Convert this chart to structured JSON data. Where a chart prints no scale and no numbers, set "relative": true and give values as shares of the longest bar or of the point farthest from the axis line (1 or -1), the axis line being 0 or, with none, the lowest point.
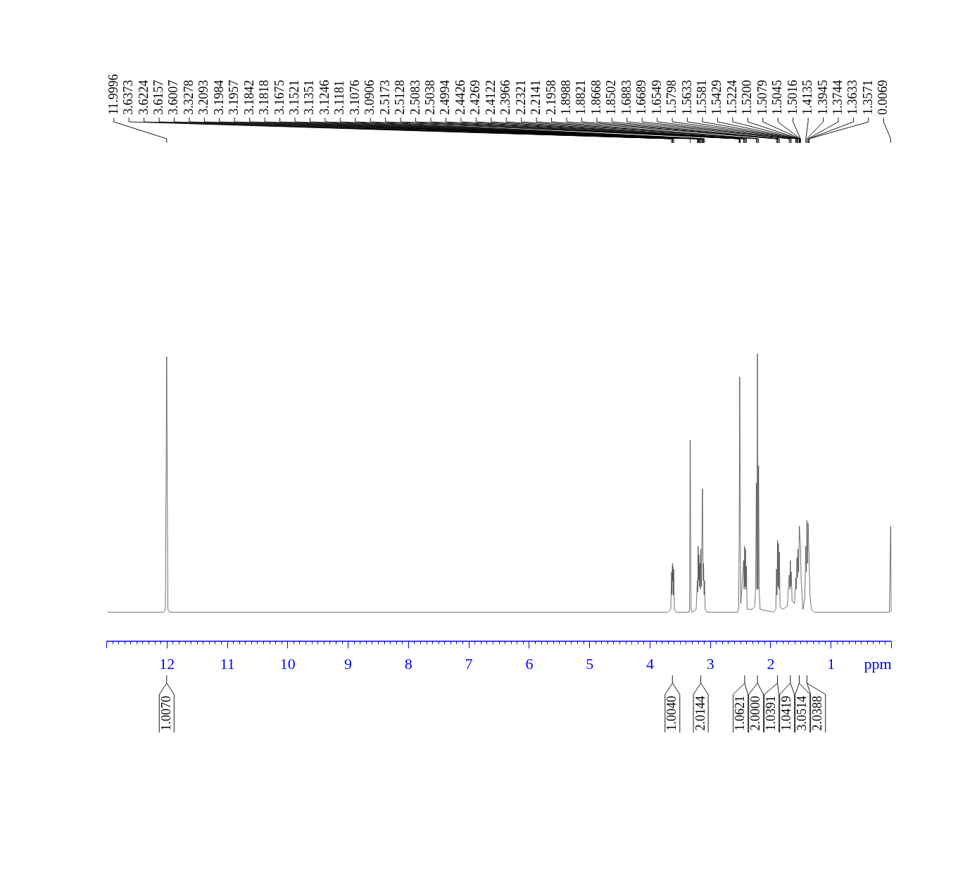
{
  "chart_data": {
    "type": "line",
    "relative": true,
    "color": "#333333",
    "xlabel": "ppm",
    "xlim": [
      13,
      0
    ],
    "xticks": [
      {
        "value": 13,
        "label": null
      },
      {
        "value": 12.9,
        "label": null
      },
      {
        "value": 12.8,
        "label": null
      },
      {
        "value": 12.7,
        "label": null
      },
      {
        "value": 12.6,
        "label": null
      },
      {
        "value": 12.5,
        "label": null
      },
      {
        "value": 12.4,
        "label": null
      },
      {
        "value": 12.3,
        "label": null
      },
      {
        "value": 12.2,
        "label": null
      },
      {
        "value": 12.1,
        "label": null
      },
      12,
      {
        "value": 11.9,
        "label": null
      },
      {
        "value": 11.8,
        "label": null
      },
      {
        "value": 11.7,
        "label": null
      },
      {
        "value": 11.6,
        "label": null
      },
      {
        "value": 11.5,
        "label": null
      },
      {
        "value": 11.4,
        "label": null
      },
      {
        "value": 11.3,
        "label": null
      },
      {
        "value": 11.2,
        "label": null
      },
      {
        "value": 11.1,
        "label": null
      },
      11,
      {
        "value": 10.9,
        "label": null
      },
      {
        "value": 10.8,
        "label": null
      },
      {
        "value": 10.7,
        "label": null
      },
      {
        "value": 10.6,
        "label": null
      },
      {
        "value": 10.5,
        "label": null
      },
      {
        "value": 10.4,
        "label": null
      },
      {
        "value": 10.3,
        "label": null
      },
      {
        "value": 10.2,
        "label": null
      },
      {
        "value": 10.1,
        "label": null
      },
      10,
      {
        "value": 9.9,
        "label": null
      },
      {
        "value": 9.8,
        "label": null
      },
      {
        "value": 9.7,
        "label": null
      },
      {
        "value": 9.6,
        "label": null
      },
      {
        "value": 9.5,
        "label": null
      },
      {
        "value": 9.4,
        "label": null
      },
      {
        "value": 9.3,
        "label": null
      },
      {
        "value": 9.2,
        "label": null
      },
      {
        "value": 9.1,
        "label": null
      },
      9,
      {
        "value": 8.9,
        "label": null
      },
      {
        "value": 8.8,
        "label": null
      },
      {
        "value": 8.7,
        "label": null
      },
      {
        "value": 8.6,
        "label": null
      },
      {
        "value": 8.5,
        "label": null
      },
      {
        "value": 8.4,
        "label": null
      },
      {
        "value": 8.3,
        "label": null
      },
      {
        "value": 8.2,
        "label": null
      },
      {
        "value": 8.1,
        "label": null
      },
      8,
      {
        "value": 7.9,
        "label": null
      },
      {
        "value": 7.8,
        "label": null
      },
      {
        "value": 7.7,
        "label": null
      },
      {
        "value": 7.6,
        "label": null
      },
      {
        "value": 7.5,
        "label": null
      },
      {
        "value": 7.4,
        "label": null
      },
      {
        "value": 7.3,
        "label": null
      },
      {
        "value": 7.2,
        "label": null
      },
      {
        "value": 7.1,
        "label": null
      },
      7,
      {
        "value": 6.9,
        "label": null
      },
      {
        "value": 6.8,
        "label": null
      },
      {
        "value": 6.7,
        "label": null
      },
      {
        "value": 6.6,
        "label": null
      },
      {
        "value": 6.5,
        "label": null
      },
      {
        "value": 6.4,
        "label": null
      },
      {
        "value": 6.3,
        "label": null
      },
      {
        "value": 6.2,
        "label": null
      },
      {
        "value": 6.1,
        "label": null
      },
      6,
      {
        "value": 5.9,
        "label": null
      },
      {
        "value": 5.8,
        "label": null
      },
      {
        "value": 5.7,
        "label": null
      },
      {
        "value": 5.6,
        "label": null
      },
      {
        "value": 5.5,
        "label": null
      },
      {
        "value": 5.4,
        "label": null
      },
      {
        "value": 5.3,
        "label": null
      },
      {
        "value": 5.2,
        "label": null
      },
      {
        "value": 5.1,
        "label": null
      },
      5,
      {
        "value": 4.9,
        "label": null
      },
      {
        "value": 4.8,
        "label": null
      },
      {
        "value": 4.7,
        "label": null
      },
      {
        "value": 4.6,
        "label": null
      },
      {
        "value": 4.5,
        "label": null
      },
      {
        "value": 4.4,
        "label": null
      },
      {
        "value": 4.3,
        "label": null
      },
      {
        "value": 4.2,
        "label": null
      },
      {
        "value": 4.1,
        "label": null
      },
      4,
      {
        "value": 3.9,
        "label": null
      },
      {
        "value": 3.8,
        "label": null
      },
      {
        "value": 3.7,
        "label": null
      },
      {
        "value": 3.6,
        "label": null
      },
      {
        "value": 3.5,
        "label": null
      },
      {
        "value": 3.4,
        "label": null
      },
      {
        "value": 3.3,
        "label": null
      },
      {
        "value": 3.2,
        "label": null
      },
      {
        "value": 3.1,
        "label": null
      },
      3,
      {
        "value": 2.9,
        "label": null
      },
      {
        "value": 2.8,
        "label": null
      },
      {
        "value": 2.7,
        "label": null
      },
      {
        "value": 2.6,
        "label": null
      },
      {
        "value": 2.5,
        "label": null
      },
      {
        "value": 2.4,
        "label": null
      },
      {
        "value": 2.3,
        "label": null
      },
      {
        "value": 2.2,
        "label": null
      },
      {
        "value": 2.1,
        "label": null
      },
      2,
      {
        "value": 1.9,
        "label": null
      },
      {
        "value": 1.8,
        "label": null
      },
      {
        "value": 1.7,
        "label": null
      },
      {
        "value": 1.6,
        "label": null
      },
      {
        "value": 1.5,
        "label": null
      },
      {
        "value": 1.4,
        "label": null
      },
      {
        "value": 1.3,
        "label": null
      },
      {
        "value": 1.2,
        "label": null
      },
      {
        "value": 1.1,
        "label": null
      },
      1,
      {
        "value": 0.9,
        "label": null
      },
      {
        "value": 0.8,
        "label": null
      },
      {
        "value": 0.7,
        "label": null
      },
      {
        "value": 0.6,
        "label": null
      },
      {
        "value": 0.5,
        "label": null
      },
      {
        "value": 0.4,
        "label": null
      },
      {
        "value": 0.3,
        "label": null
      },
      {
        "value": 0.2,
        "label": null
      },
      {
        "value": 0.1,
        "label": null
      },
      {
        "value": 0,
        "label": null
      }
    ],
    "x": [
      12.98,
      12.05,
      12.02,
      11.9996,
      11.98,
      11.95,
      3.7,
      3.65,
      3.6373,
      3.63,
      3.6224,
      3.619,
      3.6157,
      3.608,
      3.6007,
      3.59,
      3.56,
      3.35,
      3.34,
      3.3278,
      3.315,
      3.3,
      3.23,
      3.2093,
      3.203,
      3.1984,
      3.1957,
      3.19,
      3.1842,
      3.1818,
      3.174,
      3.1675,
      3.16,
      3.1521,
      3.143,
      3.1351,
      3.1246,
      3.1181,
      3.112,
      3.1076,
      3.098,
      3.0906,
      3.08,
      3.05,
      2.54,
      2.525,
      2.5173,
      2.5128,
      2.5083,
      2.5038,
      2.4994,
      2.49,
      2.4426,
      2.435,
      2.4269,
      2.419,
      2.4122,
      2.404,
      2.3966,
      2.385,
      2.3,
      2.26,
      2.245,
      2.2321,
      2.223,
      2.2141,
      2.205,
      2.1958,
      2.185,
      2.17,
      1.95,
      1.91,
      1.8988,
      1.89,
      1.8821,
      1.875,
      1.8668,
      1.858,
      1.8502,
      1.84,
      1.8,
      1.72,
      1.6883,
      1.678,
      1.6689,
      1.661,
      1.6549,
      1.64,
      1.6,
      1.5798,
      1.57,
      1.5633,
      1.5581,
      1.55,
      1.5429,
      1.532,
      1.5224,
      1.52,
      1.5079,
      1.5045,
      1.5016,
      1.49,
      1.46,
      1.43,
      1.4135,
      1.404,
      1.3945,
      1.385,
      1.3744,
      1.3633,
      1.3571,
      1.345,
      1.32,
      1.28,
      0.03,
      0.0069,
      0
    ],
    "values": [
      0.1,
      0.1,
      0.11,
      0.99,
      0.11,
      0.1,
      0.1,
      0.11,
      0.24,
      0.16,
      0.27,
      0.21,
      0.26,
      0.16,
      0.25,
      0.11,
      0.1,
      0.1,
      0.11,
      0.7,
      0.11,
      0.1,
      0.11,
      0.21,
      0.17,
      0.31,
      0.33,
      0.21,
      0.29,
      0.3,
      0.19,
      0.27,
      0.18,
      0.32,
      0.19,
      0.34,
      0.53,
      0.34,
      0.21,
      0.27,
      0.16,
      0.21,
      0.11,
      0.1,
      0.1,
      0.12,
      0.37,
      0.57,
      0.92,
      0.7,
      0.38,
      0.13,
      0.28,
      0.18,
      0.33,
      0.19,
      0.32,
      0.18,
      0.26,
      0.11,
      0.11,
      0.12,
      0.18,
      0.55,
      0.18,
      1,
      0.18,
      0.61,
      0.17,
      0.11,
      0.1,
      0.11,
      0.25,
      0.16,
      0.35,
      0.19,
      0.34,
      0.18,
      0.31,
      0.12,
      0.11,
      0.12,
      0.23,
      0.18,
      0.28,
      0.19,
      0.24,
      0.14,
      0.13,
      0.22,
      0.18,
      0.28,
      0.29,
      0.22,
      0.32,
      0.24,
      0.37,
      0.4,
      0.35,
      0.34,
      0.33,
      0.21,
      0.11,
      0.15,
      0.33,
      0.24,
      0.42,
      0.27,
      0.41,
      0.32,
      0.27,
      0.16,
      0.11,
      0.1,
      0.1,
      0.4,
      0.1
    ],
    "annotations": [
      {
        "text": "11.9996",
        "x": 11.9996
      },
      {
        "text": "3.6373",
        "x": 3.6373
      },
      {
        "text": "3.6224",
        "x": 3.6224
      },
      {
        "text": "3.6157",
        "x": 3.6157
      },
      {
        "text": "3.6007",
        "x": 3.6007
      },
      {
        "text": "3.3278",
        "x": 3.3278
      },
      {
        "text": "3.2093",
        "x": 3.2093
      },
      {
        "text": "3.1984",
        "x": 3.1984
      },
      {
        "text": "3.1957",
        "x": 3.1957
      },
      {
        "text": "3.1842",
        "x": 3.1842
      },
      {
        "text": "3.1818",
        "x": 3.1818
      },
      {
        "text": "3.1675",
        "x": 3.1675
      },
      {
        "text": "3.1521",
        "x": 3.1521
      },
      {
        "text": "3.1351",
        "x": 3.1351
      },
      {
        "text": "3.1246",
        "x": 3.1246
      },
      {
        "text": "3.1181",
        "x": 3.1181
      },
      {
        "text": "3.1076",
        "x": 3.1076
      },
      {
        "text": "3.0906",
        "x": 3.0906
      },
      {
        "text": "2.5173",
        "x": 2.5173
      },
      {
        "text": "2.5128",
        "x": 2.5128
      },
      {
        "text": "2.5083",
        "x": 2.5083
      },
      {
        "text": "2.5038",
        "x": 2.5038
      },
      {
        "text": "2.4994",
        "x": 2.4994
      },
      {
        "text": "2.4426",
        "x": 2.4426
      },
      {
        "text": "2.4269",
        "x": 2.4269
      },
      {
        "text": "2.4122",
        "x": 2.4122
      },
      {
        "text": "2.3966",
        "x": 2.3966
      },
      {
        "text": "2.2321",
        "x": 2.2321
      },
      {
        "text": "2.2141",
        "x": 2.2141
      },
      {
        "text": "2.1958",
        "x": 2.1958
      },
      {
        "text": "1.8988",
        "x": 1.8988
      },
      {
        "text": "1.8821",
        "x": 1.8821
      },
      {
        "text": "1.8668",
        "x": 1.8668
      },
      {
        "text": "1.8502",
        "x": 1.8502
      },
      {
        "text": "1.6883",
        "x": 1.6883
      },
      {
        "text": "1.6689",
        "x": 1.6689
      },
      {
        "text": "1.6549",
        "x": 1.6549
      },
      {
        "text": "1.5798",
        "x": 1.5798
      },
      {
        "text": "1.5633",
        "x": 1.5633
      },
      {
        "text": "1.5581",
        "x": 1.5581
      },
      {
        "text": "1.5429",
        "x": 1.5429
      },
      {
        "text": "1.5224",
        "x": 1.5224
      },
      {
        "text": "1.5200",
        "x": 1.52
      },
      {
        "text": "1.5079",
        "x": 1.5079
      },
      {
        "text": "1.5045",
        "x": 1.5045
      },
      {
        "text": "1.5016",
        "x": 1.5016
      },
      {
        "text": "1.4135",
        "x": 1.4135
      },
      {
        "text": "1.3945",
        "x": 1.3945
      },
      {
        "text": "1.3744",
        "x": 1.3744
      },
      {
        "text": "1.3633",
        "x": 1.3633
      },
      {
        "text": "1.3571",
        "x": 1.3571
      },
      {
        "text": "0.0069",
        "x": 0.0069
      },
      {
        "text": "1.0070",
        "x": 11.9996
      },
      {
        "text": "1.0040",
        "x": 3.6224
      },
      {
        "text": "2.0144",
        "x": 3.1521
      },
      {
        "text": "1.0621",
        "x": 2.4269
      },
      {
        "text": "2.0000",
        "x": 2.2141
      },
      {
        "text": "1.0391",
        "x": 1.8821
      },
      {
        "text": "1.0419",
        "x": 1.6689
      },
      {
        "text": "3.0514",
        "x": 1.5224
      },
      {
        "text": "2.0388",
        "x": 1.3945
      }
    ]
  }
}
